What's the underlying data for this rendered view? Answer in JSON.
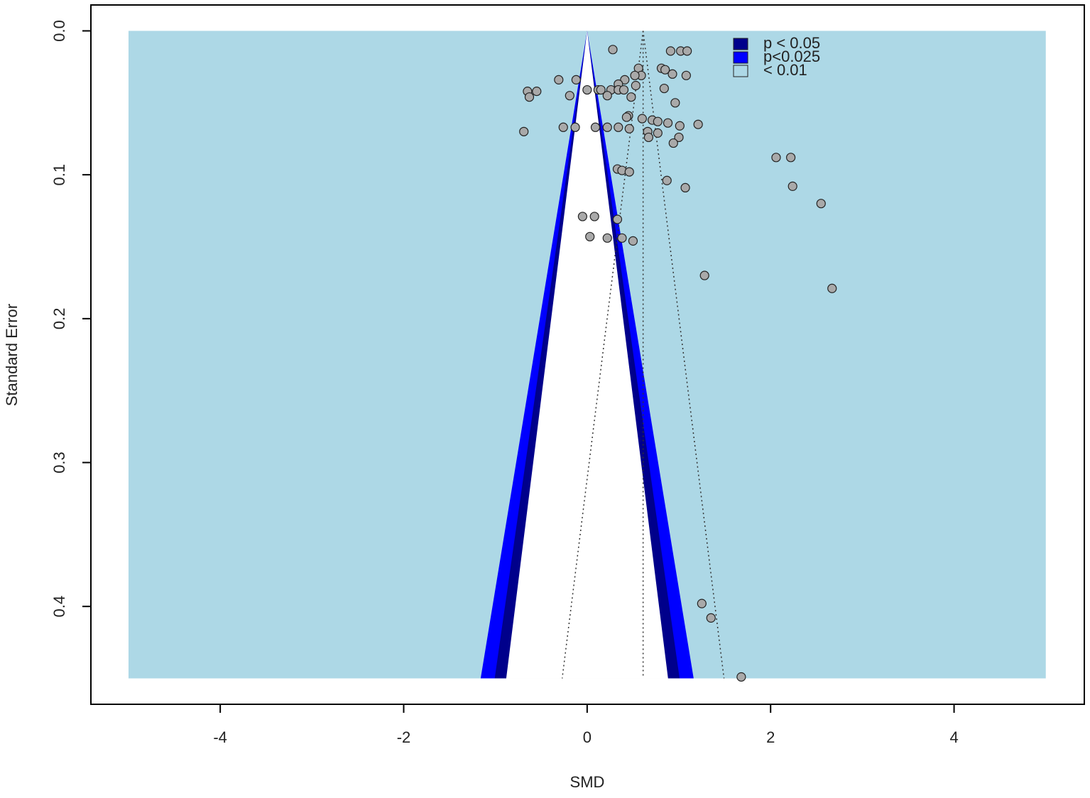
{
  "chart_data": {
    "type": "funnel",
    "x_label": "SMD",
    "y_label": "Standard Error",
    "x": [
      0.28,
      0.91,
      1.02,
      1.09,
      0.56,
      0.81,
      0.85,
      0.93,
      1.08,
      0.59,
      0.52,
      -0.31,
      -0.12,
      0.41,
      0.34,
      0.53,
      -0.65,
      -0.55,
      0.0,
      0.12,
      0.15,
      0.26,
      0.34,
      0.4,
      -0.19,
      -0.63,
      0.22,
      0.48,
      0.84,
      0.96,
      0.45,
      0.43,
      0.6,
      0.71,
      0.77,
      0.88,
      1.21,
      1.01,
      -0.69,
      -0.26,
      -0.13,
      0.09,
      0.22,
      0.34,
      0.46,
      0.66,
      0.77,
      0.67,
      1.0,
      0.94,
      2.06,
      2.22,
      0.33,
      0.38,
      0.46,
      0.87,
      1.07,
      2.24,
      2.55,
      -0.05,
      0.08,
      0.33,
      0.03,
      0.22,
      0.38,
      0.5,
      1.28,
      2.67,
      1.25,
      1.35,
      1.68
    ],
    "values": [
      0.013,
      0.014,
      0.014,
      0.014,
      0.026,
      0.026,
      0.027,
      0.03,
      0.031,
      0.031,
      0.031,
      0.034,
      0.034,
      0.034,
      0.037,
      0.038,
      0.042,
      0.042,
      0.041,
      0.041,
      0.041,
      0.041,
      0.041,
      0.041,
      0.045,
      0.046,
      0.045,
      0.046,
      0.04,
      0.05,
      0.059,
      0.06,
      0.061,
      0.062,
      0.063,
      0.064,
      0.065,
      0.066,
      0.07,
      0.067,
      0.067,
      0.067,
      0.067,
      0.067,
      0.068,
      0.07,
      0.071,
      0.074,
      0.074,
      0.078,
      0.088,
      0.088,
      0.096,
      0.097,
      0.098,
      0.104,
      0.109,
      0.108,
      0.12,
      0.129,
      0.129,
      0.131,
      0.143,
      0.144,
      0.144,
      0.146,
      0.17,
      0.179,
      0.398,
      0.408,
      0.449
    ],
    "point_color": "#a9a9a9",
    "xlim": [
      -5.41,
      5.42
    ],
    "xticks": [
      -4,
      -2,
      0,
      2,
      4
    ],
    "ylim": [
      -0.018,
      0.468
    ],
    "yticks": [
      {
        "value": 0,
        "label": "0.0"
      },
      0.1,
      0.2,
      0.3,
      0.4
    ],
    "contour_xlim": [
      -5,
      5
    ],
    "contour_ylim": [
      0,
      0.45
    ],
    "inner_z": 1.96,
    "summary_estimate": 0.61,
    "contours": [
      {
        "name": "p < 0.05",
        "color": "#00008b",
        "z": 2.24
      },
      {
        "name": "p<0.025",
        "color": "#0000ff",
        "z": 2.58
      },
      {
        "name": "< 0.01",
        "color": "#add8e6"
      }
    ]
  }
}
